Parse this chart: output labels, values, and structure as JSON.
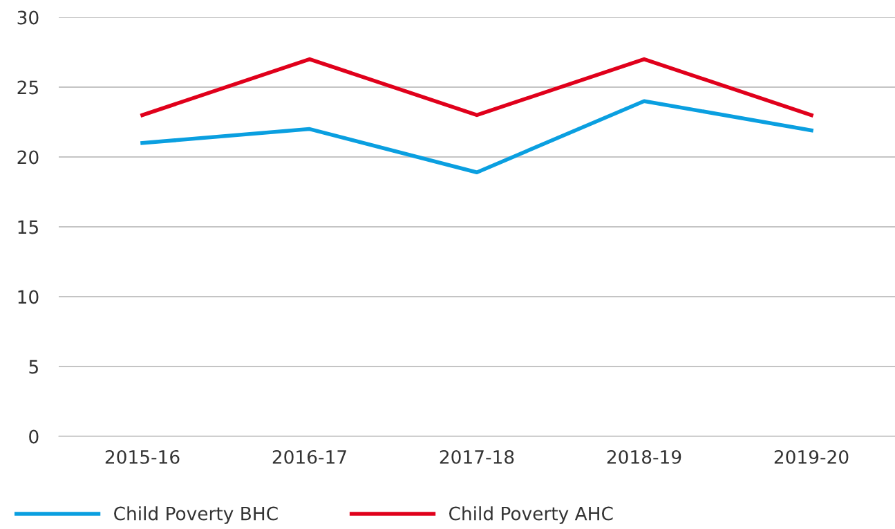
{
  "chart_data": {
    "type": "line",
    "categories": [
      "2015-16",
      "2016-17",
      "2017-18",
      "2018-19",
      "2019-20"
    ],
    "series": [
      {
        "name": "Child Poverty BHC",
        "color": "#0a9fe0",
        "values": [
          21,
          22,
          18.9,
          24,
          21.9
        ]
      },
      {
        "name": "Child Poverty AHC",
        "color": "#e0001b",
        "values": [
          23,
          27,
          23,
          27,
          23
        ]
      }
    ],
    "ylim": [
      0,
      30
    ],
    "yticks": [
      0,
      5,
      10,
      15,
      20,
      25,
      30
    ],
    "grid": "y",
    "legend": "bottom left",
    "marker": "none",
    "line_style": "solid"
  }
}
